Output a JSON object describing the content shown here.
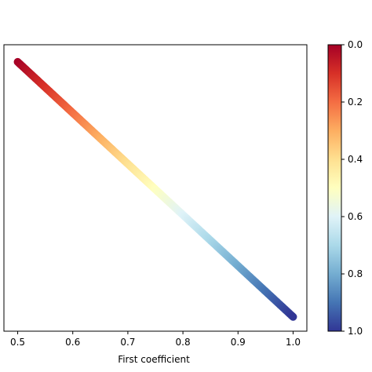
{
  "chart_data": {
    "type": "scatter",
    "title": "",
    "xlabel": "First coefficient",
    "ylabel": "",
    "xlim": [
      0.475,
      1.025
    ],
    "ylim": [
      0.0,
      1.0
    ],
    "xticks": [
      "0.5",
      "0.6",
      "0.7",
      "0.8",
      "0.9",
      "1.0"
    ],
    "xtick_values": [
      0.5,
      0.6,
      0.7,
      0.8,
      0.9,
      1.0
    ],
    "points": {
      "x_start": 0.5,
      "x_end": 1.0,
      "y_start": 0.94,
      "y_end": 0.05,
      "color_start": 0.0,
      "color_end": 1.0
    },
    "colorbar": {
      "colormap": "RdYlBu",
      "range": [
        0.0,
        1.0
      ],
      "ticks": [
        "0.0",
        "0.2",
        "0.4",
        "0.6",
        "0.8",
        "1.0"
      ],
      "tick_values": [
        0.0,
        0.2,
        0.4,
        0.6,
        0.8,
        1.0
      ],
      "reversed_axis": true
    },
    "grid": false,
    "legend": "none"
  }
}
